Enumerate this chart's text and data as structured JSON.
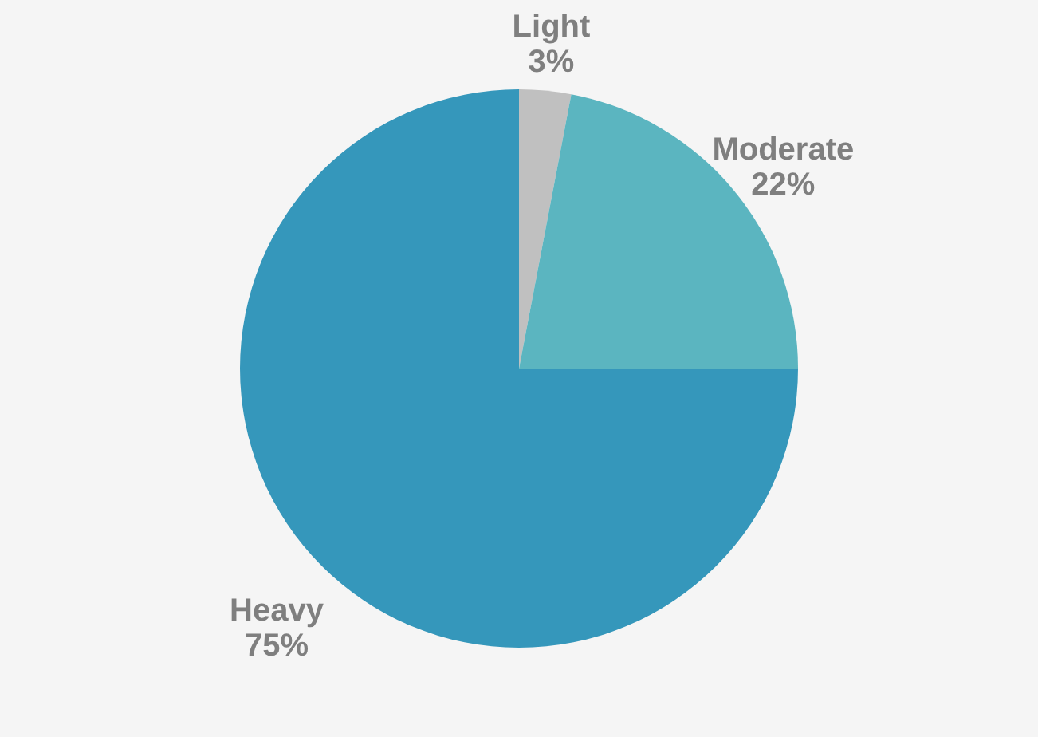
{
  "chart_data": {
    "type": "pie",
    "categories": [
      "Light",
      "Moderate",
      "Heavy"
    ],
    "values": [
      3,
      22,
      75
    ],
    "value_labels": [
      "3%",
      "22%",
      "75%"
    ],
    "colors": [
      "#c0c0c0",
      "#5bb5c0",
      "#3597bb"
    ],
    "legend": false
  }
}
